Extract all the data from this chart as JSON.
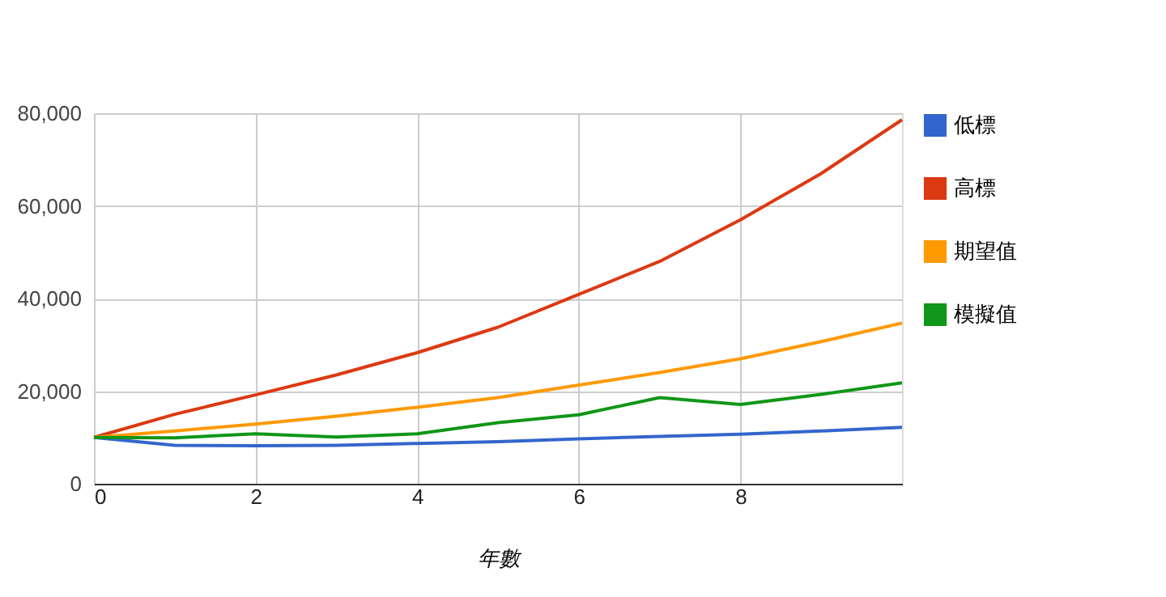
{
  "chart_data": {
    "type": "line",
    "xlabel": "年數",
    "x": [
      0,
      1,
      2,
      3,
      4,
      5,
      6,
      7,
      8,
      9,
      10
    ],
    "xlim": [
      0,
      10
    ],
    "xticks": [
      0,
      2,
      4,
      6,
      8
    ],
    "ylim": [
      0,
      80000
    ],
    "yticks": [
      0,
      {
        "value": 20000,
        "label": "20,000"
      },
      {
        "value": 40000,
        "label": "40,000"
      },
      {
        "value": 60000,
        "label": "60,000"
      },
      {
        "value": 80000,
        "label": "80,000"
      }
    ],
    "grid": true,
    "legend": "top right",
    "marker": "none",
    "series": [
      {
        "name": "低標",
        "color": "#3366cc",
        "values": [
          10000,
          8300,
          8200,
          8300,
          8700,
          9100,
          9700,
          10200,
          10700,
          11400,
          12200
        ]
      },
      {
        "name": "高標",
        "color": "#dc3912",
        "values": [
          10000,
          15000,
          19200,
          23500,
          28300,
          33800,
          40900,
          48000,
          57000,
          67000,
          78600
        ]
      },
      {
        "name": "期望值",
        "color": "#ff9900",
        "values": [
          10000,
          11400,
          12900,
          14600,
          16500,
          18600,
          21300,
          24000,
          27000,
          30700,
          34700
        ]
      },
      {
        "name": "模擬值",
        "color": "#109618",
        "values": [
          10000,
          9900,
          10800,
          10100,
          10800,
          13200,
          14900,
          18600,
          17100,
          19300,
          21800
        ]
      }
    ]
  }
}
